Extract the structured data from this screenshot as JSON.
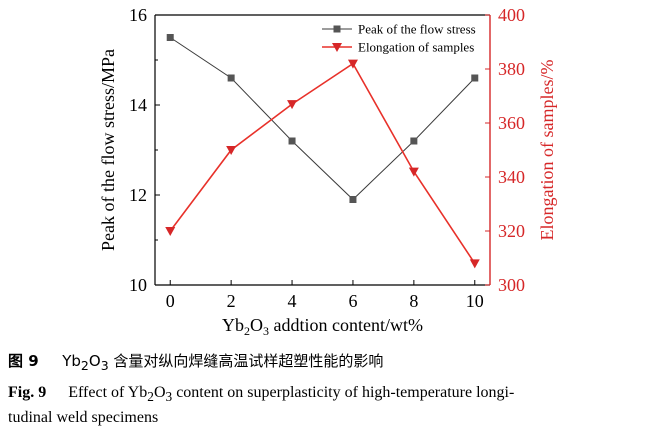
{
  "chart_data": {
    "type": "line",
    "x": [
      0,
      2,
      4,
      6,
      8,
      10
    ],
    "xlabel_parts": [
      "Yb",
      "2",
      "O",
      "3",
      " addtion content/wt%"
    ],
    "xlim": [
      -0.5,
      10.5
    ],
    "xticks": [
      0,
      2,
      4,
      6,
      8,
      10
    ],
    "left_axis": {
      "label": "Peak of the flow stress/MPa",
      "lim": [
        10,
        16
      ],
      "ticks": [
        10,
        12,
        14,
        16
      ],
      "color": "#000000"
    },
    "right_axis": {
      "label": "Elongation of samples/%",
      "lim": [
        300,
        400
      ],
      "ticks": [
        300,
        320,
        340,
        360,
        380,
        400
      ],
      "color": "#d62728"
    },
    "series": [
      {
        "name": "Peak of the flow stress",
        "axis": "left",
        "values": [
          15.5,
          14.6,
          13.2,
          11.9,
          13.2,
          14.6
        ],
        "line_color": "#3a3a3a",
        "marker_color": "#555555",
        "marker": "square"
      },
      {
        "name": "Elongation of samples",
        "axis": "right",
        "values": [
          320,
          350,
          367,
          382,
          342,
          308
        ],
        "line_color": "#e8312a",
        "marker_color": "#d62728",
        "marker": "triangle-down"
      }
    ],
    "legend_position": "top-right",
    "grid": false
  },
  "caption": {
    "cn_label": "图 9",
    "cn_parts": [
      "Yb",
      "2",
      "O",
      "3",
      " 含量对纵向焊缝高温试样超塑性能的影响"
    ],
    "en_label": "Fig. 9",
    "en_parts": [
      "Effect of Yb",
      "2",
      "O",
      "3",
      " content on superplasticity of high-temperature longi-"
    ],
    "en_line2": "tudinal weld specimens"
  }
}
